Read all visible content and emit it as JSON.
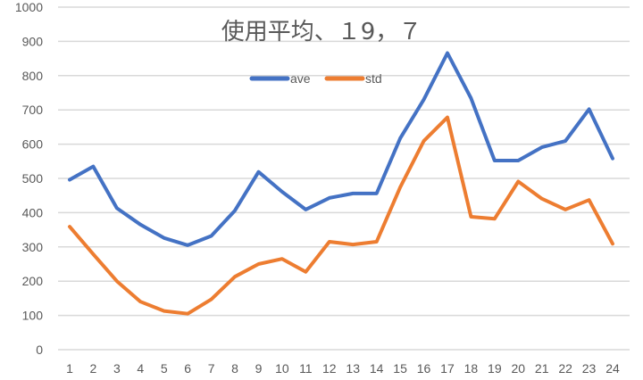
{
  "chart_data": {
    "type": "line",
    "title": "使用平均、１9，７",
    "xlabel": "",
    "ylabel": "",
    "ylim": [
      0,
      1000
    ],
    "yticks": [
      0,
      100,
      200,
      300,
      400,
      500,
      600,
      700,
      800,
      900,
      1000
    ],
    "grid": true,
    "legend_position": "top",
    "categories": [
      "1",
      "2",
      "3",
      "4",
      "5",
      "6",
      "7",
      "8",
      "9",
      "10",
      "11",
      "12",
      "13",
      "14",
      "15",
      "16",
      "17",
      "18",
      "19",
      "20",
      "21",
      "22",
      "23",
      "24"
    ],
    "series": [
      {
        "name": "ave",
        "color": "#4472C4",
        "values": [
          496,
          535,
          413,
          365,
          326,
          305,
          332,
          406,
          519,
          461,
          409,
          443,
          456,
          456,
          617,
          730,
          866,
          734,
          552,
          552,
          591,
          609,
          702,
          558
        ]
      },
      {
        "name": "std",
        "color": "#ED7D31",
        "values": [
          359,
          279,
          200,
          140,
          113,
          105,
          147,
          213,
          250,
          265,
          227,
          315,
          307,
          315,
          474,
          609,
          678,
          388,
          382,
          491,
          441,
          409,
          437,
          309
        ]
      }
    ]
  }
}
